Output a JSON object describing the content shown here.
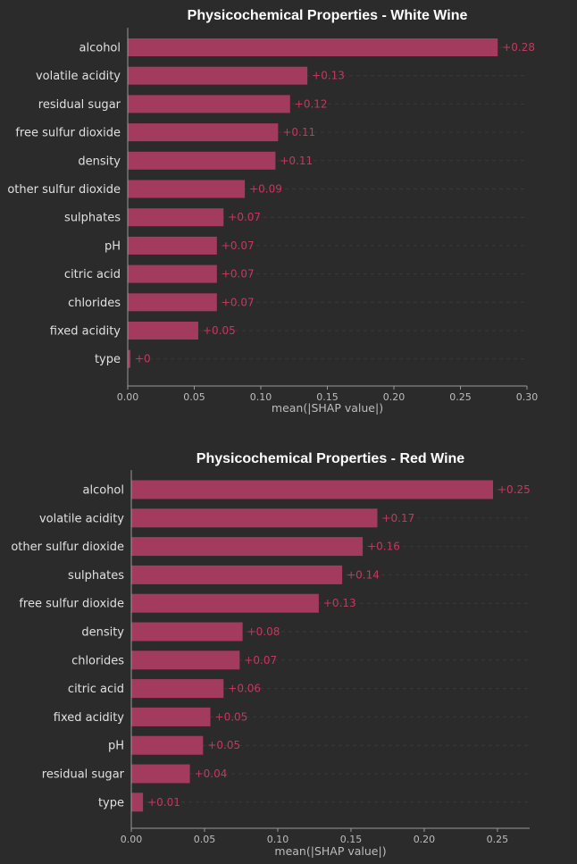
{
  "chart_data": [
    {
      "type": "bar",
      "orientation": "horizontal",
      "title": "Physicochemical Properties - White Wine",
      "xlabel": "mean(|SHAP value|)",
      "xlim": [
        0,
        0.3
      ],
      "xticks": [
        "0.00",
        "0.05",
        "0.10",
        "0.15",
        "0.20",
        "0.25",
        "0.30"
      ],
      "tick_values": [
        0,
        0.05,
        0.1,
        0.15,
        0.2,
        0.25,
        0.3
      ],
      "categories": [
        "alcohol",
        "volatile acidity",
        "residual sugar",
        "free sulfur dioxide",
        "density",
        "other sulfur dioxide",
        "sulphates",
        "pH",
        "citric acid",
        "chlorides",
        "fixed acidity",
        "type"
      ],
      "values": [
        0.278,
        0.135,
        0.122,
        0.113,
        0.111,
        0.088,
        0.072,
        0.067,
        0.067,
        0.067,
        0.053,
        0.002
      ],
      "value_labels": [
        "+0.28",
        "+0.13",
        "+0.12",
        "+0.11",
        "+0.11",
        "+0.09",
        "+0.07",
        "+0.07",
        "+0.07",
        "+0.07",
        "+0.05",
        "+0"
      ]
    },
    {
      "type": "bar",
      "orientation": "horizontal",
      "title": "Physicochemical Properties - Red Wine",
      "xlabel": "mean(|SHAP value|)",
      "xlim": [
        0,
        0.272
      ],
      "xticks": [
        "0.00",
        "0.05",
        "0.10",
        "0.15",
        "0.20",
        "0.25"
      ],
      "tick_values": [
        0,
        0.05,
        0.1,
        0.15,
        0.2,
        0.25
      ],
      "categories": [
        "alcohol",
        "volatile acidity",
        "other sulfur dioxide",
        "sulphates",
        "free sulfur dioxide",
        "density",
        "chlorides",
        "citric acid",
        "fixed acidity",
        "pH",
        "residual sugar",
        "type"
      ],
      "values": [
        0.247,
        0.168,
        0.158,
        0.144,
        0.128,
        0.076,
        0.074,
        0.063,
        0.054,
        0.049,
        0.04,
        0.008
      ],
      "value_labels": [
        "+0.25",
        "+0.17",
        "+0.16",
        "+0.14",
        "+0.13",
        "+0.08",
        "+0.07",
        "+0.06",
        "+0.05",
        "+0.05",
        "+0.04",
        "+0.01"
      ]
    }
  ],
  "colors": {
    "background": "#2b2b2b",
    "bar": "#a33b5e",
    "value_label": "#c8365e",
    "axis": "#9a9a9a",
    "grid": "#3a3a3a",
    "title": "#ffffff",
    "label": "#e0e0e0"
  }
}
